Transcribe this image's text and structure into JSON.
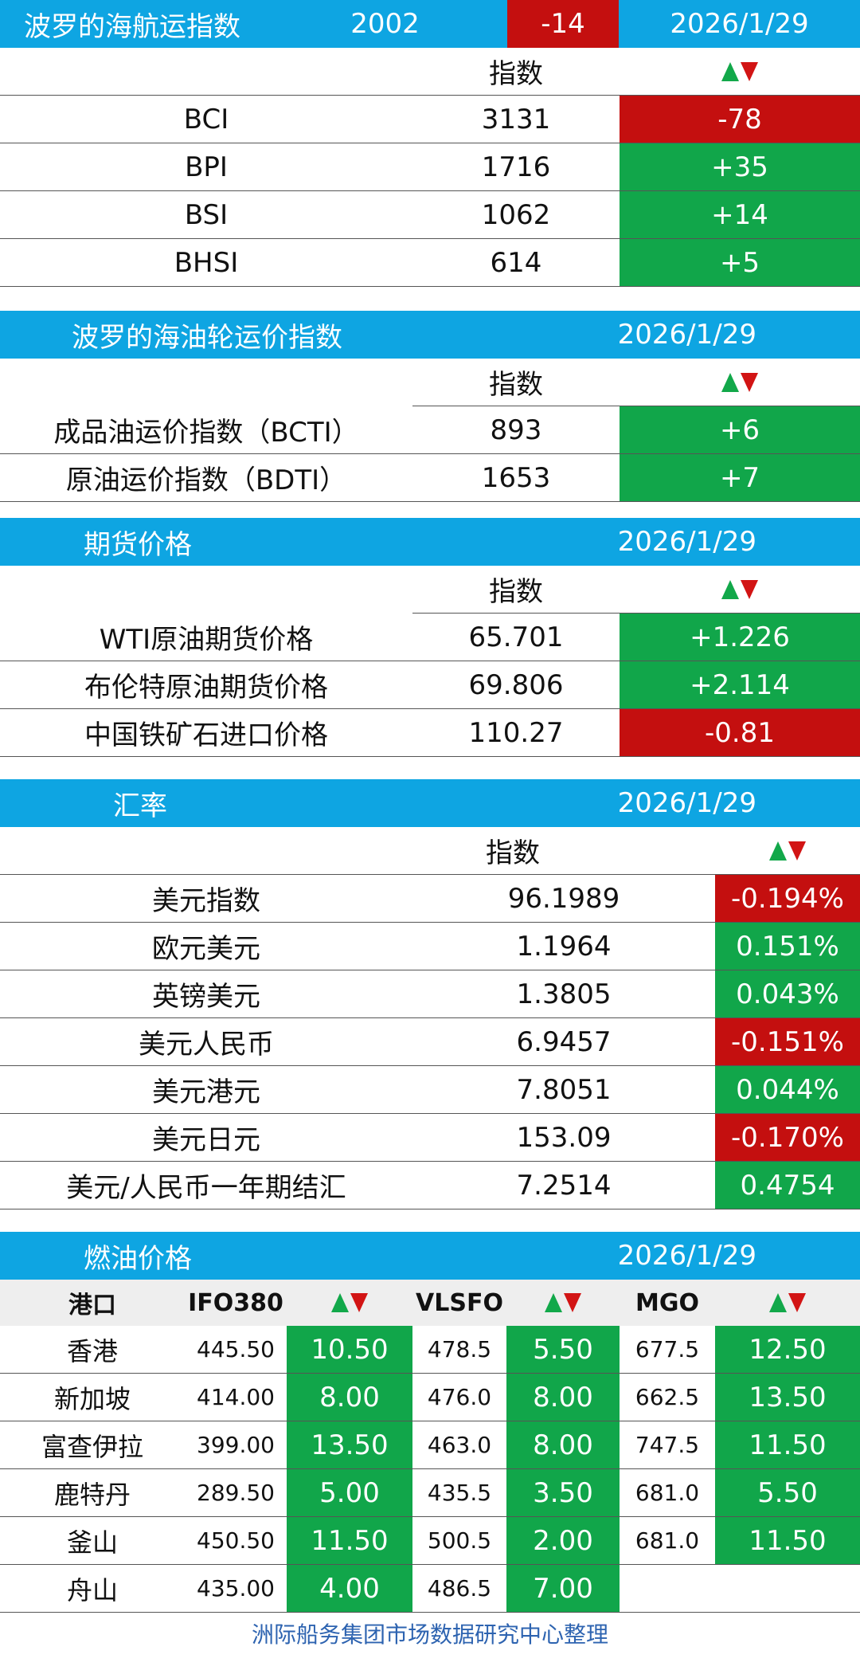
{
  "bdi": {
    "title": "波罗的海航运指数",
    "value": "2002",
    "change": "-14",
    "date": "2026/1/29",
    "col_index": "指数",
    "rows": [
      {
        "name": "BCI",
        "value": "3131",
        "change": "-78",
        "dir": "down"
      },
      {
        "name": "BPI",
        "value": "1716",
        "change": "+35",
        "dir": "up"
      },
      {
        "name": "BSI",
        "value": "1062",
        "change": "+14",
        "dir": "up"
      },
      {
        "name": "BHSI",
        "value": "614",
        "change": "+5",
        "dir": "up"
      }
    ]
  },
  "tanker": {
    "title": "波罗的海油轮运价指数",
    "date": "2026/1/29",
    "col_index": "指数",
    "rows": [
      {
        "name": "成品油运价指数（BCTI）",
        "value": "893",
        "change": "+6",
        "dir": "up"
      },
      {
        "name": "原油运价指数（BDTI）",
        "value": "1653",
        "change": "+7",
        "dir": "up"
      }
    ]
  },
  "futures": {
    "title": "期货价格",
    "date": "2026/1/29",
    "col_index": "指数",
    "rows": [
      {
        "name": "WTI原油期货价格",
        "value": "65.701",
        "change": "+1.226",
        "dir": "up"
      },
      {
        "name": "布伦特原油期货价格",
        "value": "69.806",
        "change": "+2.114",
        "dir": "up"
      },
      {
        "name": "中国铁矿石进口价格",
        "value": "110.27",
        "change": "-0.81",
        "dir": "down"
      }
    ]
  },
  "fx": {
    "title": "汇率",
    "date": "2026/1/29",
    "col_index": "指数",
    "rows": [
      {
        "name": "美元指数",
        "value": "96.1989",
        "change": "-0.194%",
        "dir": "down"
      },
      {
        "name": "欧元美元",
        "value": "1.1964",
        "change": "0.151%",
        "dir": "up"
      },
      {
        "name": "英镑美元",
        "value": "1.3805",
        "change": "0.043%",
        "dir": "up"
      },
      {
        "name": "美元人民币",
        "value": "6.9457",
        "change": "-0.151%",
        "dir": "down"
      },
      {
        "name": "美元港元",
        "value": "7.8051",
        "change": "0.044%",
        "dir": "up"
      },
      {
        "name": "美元日元",
        "value": "153.09",
        "change": "-0.170%",
        "dir": "down"
      },
      {
        "name": "美元/人民币一年期结汇",
        "value": "7.2514",
        "change": "0.4754",
        "dir": "up"
      }
    ]
  },
  "fuel": {
    "title": "燃油价格",
    "date": "2026/1/29",
    "headers": {
      "port": "港口",
      "ifo": "IFO380",
      "vlsfo": "VLSFO",
      "mgo": "MGO"
    },
    "rows": [
      {
        "port": "香港",
        "ifo": "445.50",
        "ifo_chg": "10.50",
        "vlsfo": "478.5",
        "vlsfo_chg": "5.50",
        "mgo": "677.5",
        "mgo_chg": "12.50"
      },
      {
        "port": "新加坡",
        "ifo": "414.00",
        "ifo_chg": "8.00",
        "vlsfo": "476.0",
        "vlsfo_chg": "8.00",
        "mgo": "662.5",
        "mgo_chg": "13.50"
      },
      {
        "port": "富查伊拉",
        "ifo": "399.00",
        "ifo_chg": "13.50",
        "vlsfo": "463.0",
        "vlsfo_chg": "8.00",
        "mgo": "747.5",
        "mgo_chg": "11.50"
      },
      {
        "port": "鹿特丹",
        "ifo": "289.50",
        "ifo_chg": "5.00",
        "vlsfo": "435.5",
        "vlsfo_chg": "3.50",
        "mgo": "681.0",
        "mgo_chg": "5.50"
      },
      {
        "port": "釜山",
        "ifo": "450.50",
        "ifo_chg": "11.50",
        "vlsfo": "500.5",
        "vlsfo_chg": "2.00",
        "mgo": "681.0",
        "mgo_chg": "11.50"
      },
      {
        "port": "舟山",
        "ifo": "435.00",
        "ifo_chg": "4.00",
        "vlsfo": "486.5",
        "vlsfo_chg": "7.00",
        "mgo": "",
        "mgo_chg": ""
      }
    ]
  },
  "footer": "洲际船务集团市场数据研究中心整理",
  "icons": {
    "change_header": "up-down-arrows-icon"
  },
  "colors": {
    "header_blue": "#0ea5e2",
    "down_red": "#c40f0f",
    "up_green": "#11a64a"
  }
}
